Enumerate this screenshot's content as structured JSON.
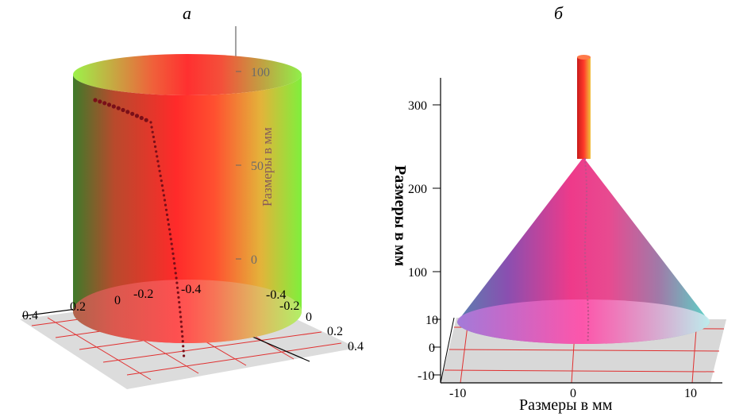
{
  "panels": {
    "a": {
      "label": "а",
      "vertical_ticks": [
        "100",
        "50",
        "0"
      ],
      "vertical_axis_title": "Размеры в мм",
      "horizontal_ticks_left": [
        "0.4",
        "0.2",
        "0",
        "-0.2",
        "-0.4"
      ],
      "horizontal_ticks_right": [
        "-0.4",
        "-0.2",
        "0",
        "0.2",
        "0.4"
      ]
    },
    "b": {
      "label": "б",
      "vertical_ticks": [
        "300",
        "200",
        "100",
        "10",
        "0",
        "-10"
      ],
      "vertical_axis_title": "Размеры в мм",
      "horizontal_ticks": [
        "-10",
        "0",
        "10"
      ],
      "horizontal_axis_title": "Размеры в мм"
    }
  }
}
